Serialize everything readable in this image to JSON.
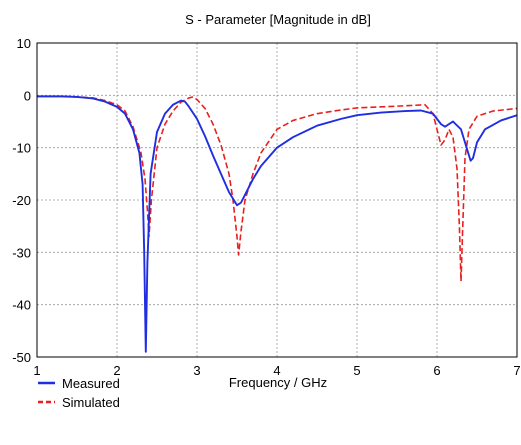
{
  "chart_data": {
    "type": "line",
    "title": "S - Parameter [Magnitude in dB]",
    "xlabel": "Frequency / GHz",
    "ylabel": "",
    "xlim": [
      1,
      7
    ],
    "ylim": [
      -50,
      10
    ],
    "xticks": [
      1,
      2,
      3,
      4,
      5,
      6,
      7
    ],
    "yticks": [
      10,
      0,
      -10,
      -20,
      -30,
      -40,
      -50
    ],
    "grid": true,
    "legend_position": "bottom-left",
    "series": [
      {
        "name": "Measured",
        "color": "#1f2ee0",
        "style": "solid",
        "x": [
          1.0,
          1.3,
          1.5,
          1.7,
          1.85,
          2.0,
          2.1,
          2.2,
          2.28,
          2.32,
          2.34,
          2.36,
          2.38,
          2.42,
          2.5,
          2.6,
          2.7,
          2.8,
          2.85,
          2.9,
          3.0,
          3.1,
          3.2,
          3.3,
          3.4,
          3.5,
          3.55,
          3.6,
          3.7,
          3.8,
          4.0,
          4.2,
          4.5,
          4.8,
          5.0,
          5.3,
          5.6,
          5.8,
          5.95,
          6.05,
          6.1,
          6.2,
          6.3,
          6.38,
          6.42,
          6.45,
          6.5,
          6.6,
          6.8,
          7.0
        ],
        "y": [
          -0.2,
          -0.2,
          -0.3,
          -0.6,
          -1.2,
          -2.2,
          -3.5,
          -6.5,
          -11,
          -17,
          -30,
          -49,
          -32,
          -15,
          -7,
          -3.5,
          -1.8,
          -1.0,
          -1.2,
          -2.2,
          -4.5,
          -7.8,
          -11.5,
          -15,
          -18.5,
          -21,
          -20.5,
          -19,
          -16,
          -13.5,
          -10,
          -8,
          -5.8,
          -4.5,
          -3.8,
          -3.3,
          -3,
          -2.9,
          -3.5,
          -5.5,
          -6,
          -5,
          -6.5,
          -10.5,
          -12.5,
          -12,
          -9,
          -6.5,
          -4.8,
          -3.8
        ]
      },
      {
        "name": "Simulated",
        "color": "#e8201f",
        "style": "dashed",
        "x": [
          1.0,
          1.3,
          1.5,
          1.7,
          1.85,
          2.0,
          2.1,
          2.2,
          2.3,
          2.35,
          2.38,
          2.4,
          2.43,
          2.5,
          2.6,
          2.7,
          2.8,
          2.9,
          2.95,
          3.0,
          3.1,
          3.2,
          3.3,
          3.4,
          3.45,
          3.5,
          3.52,
          3.55,
          3.6,
          3.7,
          3.8,
          4.0,
          4.2,
          4.5,
          4.8,
          5.0,
          5.3,
          5.6,
          5.85,
          5.95,
          6.05,
          6.1,
          6.15,
          6.2,
          6.25,
          6.28,
          6.3,
          6.32,
          6.35,
          6.4,
          6.5,
          6.7,
          7.0
        ],
        "y": [
          -0.2,
          -0.2,
          -0.3,
          -0.5,
          -1.0,
          -1.8,
          -3.0,
          -6.0,
          -11,
          -16,
          -22,
          -27,
          -20,
          -10,
          -5.5,
          -3,
          -1.3,
          -0.5,
          -0.3,
          -0.8,
          -2.5,
          -5.5,
          -9.5,
          -15,
          -20,
          -27,
          -30.5,
          -26,
          -20,
          -15,
          -11,
          -6.5,
          -4.8,
          -3.5,
          -2.8,
          -2.4,
          -2.2,
          -2.0,
          -1.8,
          -3.5,
          -9.5,
          -8.5,
          -6.5,
          -8,
          -14,
          -25,
          -35.5,
          -26,
          -12,
          -6.5,
          -4,
          -3,
          -2.5
        ]
      }
    ]
  }
}
